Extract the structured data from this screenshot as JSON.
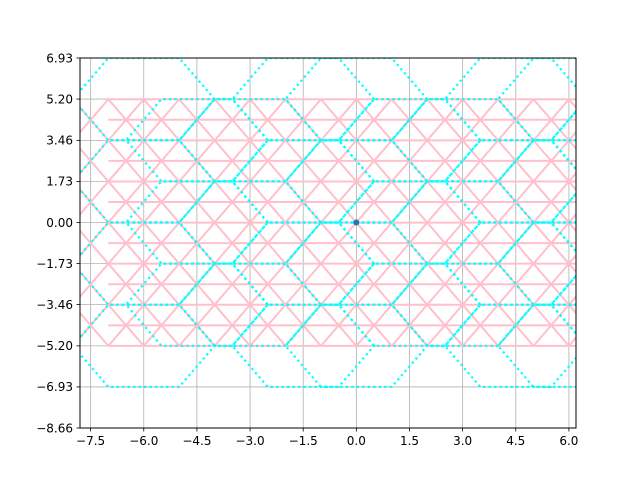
{
  "chart_data": {
    "type": "line",
    "title": "",
    "xlabel": "",
    "ylabel": "",
    "xlim": [
      -7.8,
      6.2
    ],
    "ylim": [
      -8.66,
      6.93
    ],
    "grid": true,
    "xticks": [
      -7.5,
      -6.0,
      -4.5,
      -3.0,
      -1.5,
      0.0,
      1.5,
      3.0,
      4.5,
      6.0
    ],
    "xtick_labels": [
      "−7.5",
      "−6.0",
      "−4.5",
      "−3.0",
      "−1.5",
      "0.0",
      "1.5",
      "3.0",
      "4.5",
      "6.0"
    ],
    "yticks": [
      6.93,
      5.2,
      3.46,
      1.73,
      0.0,
      -1.73,
      -3.46,
      -5.2,
      -6.93,
      -8.66
    ],
    "ytick_labels": [
      "6.93",
      "5.20",
      "3.46",
      "1.73",
      "0.00",
      "−1.73",
      "−3.46",
      "−5.20",
      "−6.93",
      "−8.66"
    ],
    "series": [
      {
        "name": "triangular lattice",
        "style": "solid",
        "color": "#ffc0cb",
        "x_range": [
          -7.0,
          6.2
        ],
        "row_spacing": 0.866,
        "y_range": [
          -5.2,
          5.2
        ],
        "edge_length": 1.0
      },
      {
        "name": "hexagon tiling",
        "style": "dotted",
        "color": "#00ffff",
        "hex_radius": 2.0,
        "column_centers_x": [
          -6.0,
          -3.0,
          0.0,
          3.0,
          6.0
        ],
        "column_a_centers_y": [
          -5.196,
          -1.732,
          1.732,
          5.196
        ],
        "column_b_centers_y": [
          -3.464,
          0.0,
          3.464
        ]
      },
      {
        "name": "origin",
        "style": "marker",
        "color": "#1f77b4",
        "x": [
          0.0
        ],
        "y": [
          0.0
        ]
      }
    ]
  }
}
